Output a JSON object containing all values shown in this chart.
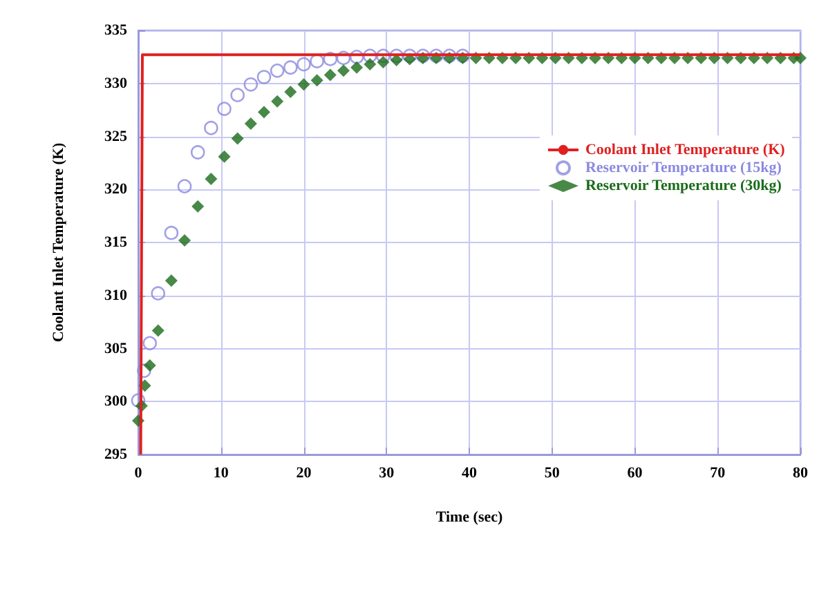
{
  "chart_data": {
    "type": "scatter",
    "xlabel": "Time (sec)",
    "ylabel": "Coolant Inlet Temperature (K)",
    "xlim": [
      0,
      80
    ],
    "xticks": [
      0,
      10,
      20,
      30,
      40,
      50,
      60,
      70,
      80
    ],
    "ylim": [
      295,
      335
    ],
    "yticks": [
      295,
      300,
      305,
      310,
      315,
      320,
      325,
      330,
      335
    ],
    "grid": true,
    "legend": "top right",
    "series": [
      {
        "name": "Coolant Inlet Temperature (K)",
        "type": "line",
        "color": "#e02020",
        "marker": "none",
        "line_style": "solid",
        "x": [
          0.3,
          0.5,
          80
        ],
        "values": [
          295,
          332.7,
          332.7
        ]
      },
      {
        "name": "Reservoir Temperature (15kg)",
        "color": "#8a8ae0",
        "marker": "circle",
        "x": [
          0,
          0.7,
          1.4,
          2.4,
          4.0,
          5.6,
          7.2,
          8.8,
          10.4,
          12.0,
          13.6,
          15.2,
          16.8,
          18.4,
          20.0,
          21.6,
          23.2,
          24.8,
          26.4,
          28.0,
          29.6,
          31.2,
          32.8,
          34.4,
          36.0,
          37.6,
          39.2
        ],
        "values": [
          300.1,
          302.9,
          305.5,
          310.2,
          315.9,
          320.3,
          323.5,
          325.8,
          327.6,
          328.9,
          329.9,
          330.6,
          331.2,
          331.5,
          331.8,
          332.1,
          332.3,
          332.4,
          332.5,
          332.6,
          332.6,
          332.6,
          332.6,
          332.6,
          332.6,
          332.6,
          332.6
        ]
      },
      {
        "name": "Reservoir Temperature (30kg)",
        "color": "#1a6b1a",
        "marker": "diamond",
        "x": [
          0,
          0.4,
          0.8,
          1.4,
          2.4,
          4.0,
          5.6,
          7.2,
          8.8,
          10.4,
          12.0,
          13.6,
          15.2,
          16.8,
          18.4,
          20.0,
          21.6,
          23.2,
          24.8,
          26.4,
          28.0,
          29.6,
          31.2,
          32.8,
          34.4,
          36.0,
          37.6,
          39.2,
          40.8,
          42.4,
          44.0,
          45.6,
          47.2,
          48.8,
          50.4,
          52.0,
          53.6,
          55.2,
          56.8,
          58.4,
          60.0,
          61.6,
          63.2,
          64.8,
          66.4,
          68.0,
          69.6,
          71.2,
          72.8,
          74.4,
          76.0,
          77.6,
          79.2,
          80
        ],
        "values": [
          298.2,
          299.6,
          301.5,
          303.4,
          306.7,
          311.4,
          315.2,
          318.4,
          321.0,
          323.1,
          324.8,
          326.2,
          327.3,
          328.3,
          329.2,
          329.9,
          330.3,
          330.8,
          331.2,
          331.5,
          331.8,
          332.0,
          332.2,
          332.3,
          332.4,
          332.4,
          332.4,
          332.4,
          332.4,
          332.4,
          332.4,
          332.4,
          332.4,
          332.4,
          332.4,
          332.4,
          332.4,
          332.4,
          332.4,
          332.4,
          332.4,
          332.4,
          332.4,
          332.4,
          332.4,
          332.4,
          332.4,
          332.4,
          332.4,
          332.4,
          332.4,
          332.4,
          332.4,
          332.4
        ]
      }
    ]
  }
}
